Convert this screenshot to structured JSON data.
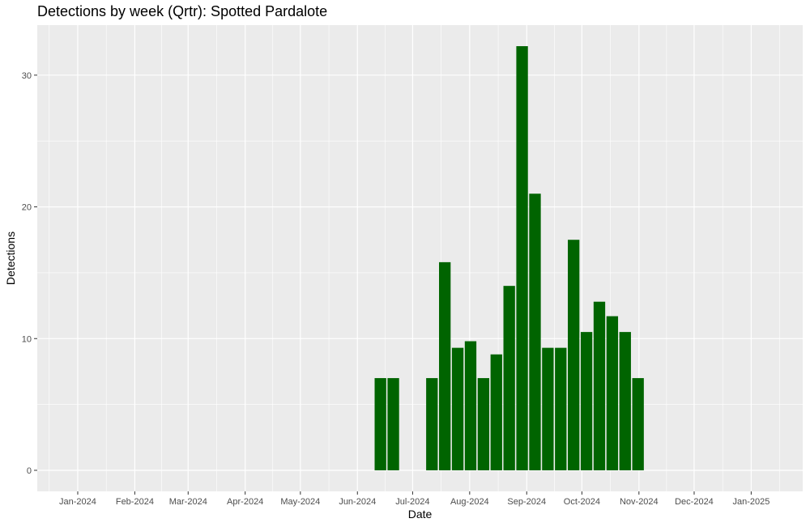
{
  "chart_data": {
    "type": "bar",
    "title": "Detections by week (Qrtr): Spotted Pardalote",
    "xlabel": "Date",
    "ylabel": "Detections",
    "x_tick_labels": [
      "Jan-2024",
      "Feb-2024",
      "Mar-2024",
      "Apr-2024",
      "May-2024",
      "Jun-2024",
      "Jul-2024",
      "Aug-2024",
      "Sep-2024",
      "Oct-2024",
      "Nov-2024",
      "Dec-2024",
      "Jan-2025"
    ],
    "y_ticks": [
      0,
      10,
      20,
      30
    ],
    "ylim": [
      -1.6,
      33.8
    ],
    "xlim": [
      "2023-12-10",
      "2025-01-29"
    ],
    "bars": [
      {
        "week_start": "2024-06-10",
        "value": 7
      },
      {
        "week_start": "2024-06-17",
        "value": 7
      },
      {
        "week_start": "2024-07-08",
        "value": 7
      },
      {
        "week_start": "2024-07-15",
        "value": 15.8
      },
      {
        "week_start": "2024-07-22",
        "value": 9.3
      },
      {
        "week_start": "2024-07-29",
        "value": 9.8
      },
      {
        "week_start": "2024-08-05",
        "value": 7
      },
      {
        "week_start": "2024-08-12",
        "value": 8.8
      },
      {
        "week_start": "2024-08-19",
        "value": 14
      },
      {
        "week_start": "2024-08-26",
        "value": 32.2
      },
      {
        "week_start": "2024-09-02",
        "value": 21
      },
      {
        "week_start": "2024-09-09",
        "value": 9.3
      },
      {
        "week_start": "2024-09-16",
        "value": 9.3
      },
      {
        "week_start": "2024-09-23",
        "value": 17.5
      },
      {
        "week_start": "2024-09-30",
        "value": 10.5
      },
      {
        "week_start": "2024-10-07",
        "value": 12.8
      },
      {
        "week_start": "2024-10-14",
        "value": 11.7
      },
      {
        "week_start": "2024-10-21",
        "value": 10.5
      },
      {
        "week_start": "2024-10-28",
        "value": 7
      }
    ],
    "bar_color": "#006400",
    "panel_background": "#ebebeb",
    "grid_color": "#ffffff",
    "grid": true,
    "legend": "none"
  }
}
